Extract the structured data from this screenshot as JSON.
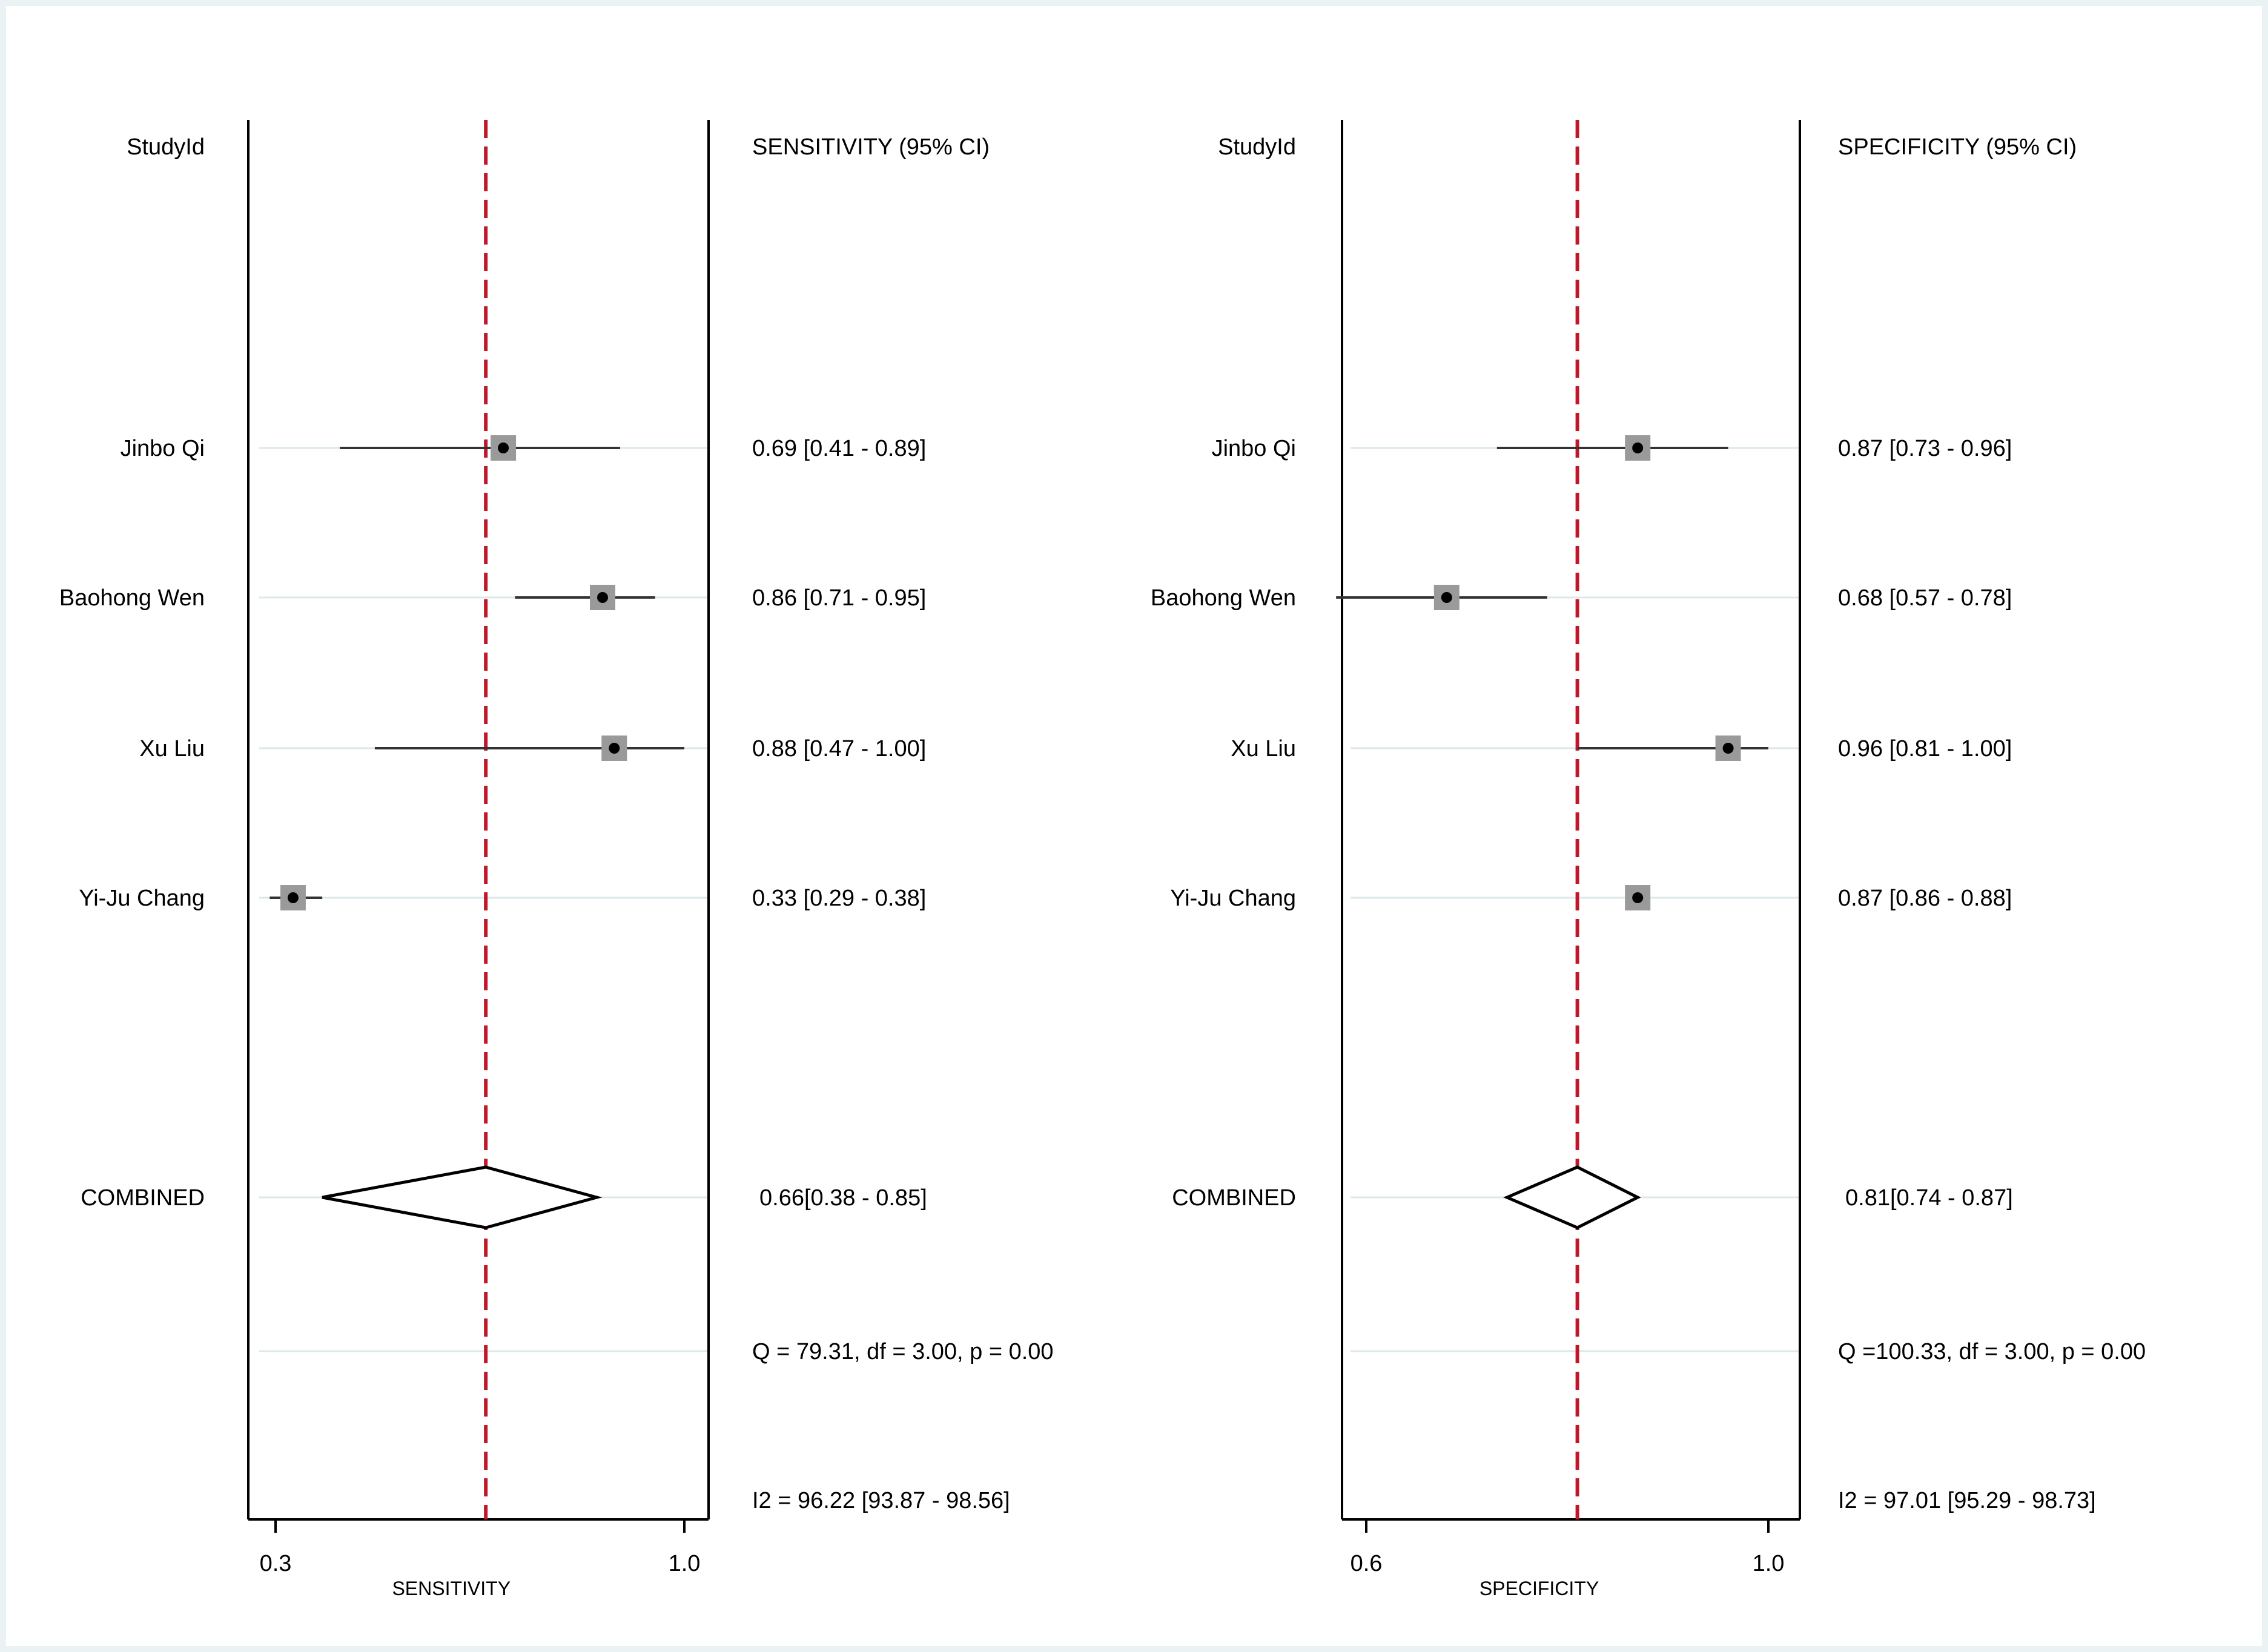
{
  "chart_data": [
    {
      "type": "forest",
      "column_header_study": "StudyId",
      "column_header_estimate": "SENSITIVITY (95% CI)",
      "xlabel": "SENSITIVITY",
      "xlim": [
        0.3,
        1.0
      ],
      "xticks": [
        "0.3",
        "1.0"
      ],
      "pooled_estimate": 0.66,
      "studies": [
        {
          "name": "Jinbo Qi",
          "estimate": 0.69,
          "lower": 0.41,
          "upper": 0.89,
          "label": "0.69 [0.41 - 0.89]"
        },
        {
          "name": "Baohong Wen",
          "estimate": 0.86,
          "lower": 0.71,
          "upper": 0.95,
          "label": "0.86 [0.71 - 0.95]"
        },
        {
          "name": "Xu Liu",
          "estimate": 0.88,
          "lower": 0.47,
          "upper": 1.0,
          "label": "0.88 [0.47 - 1.00]"
        },
        {
          "name": "Yi-Ju Chang",
          "estimate": 0.33,
          "lower": 0.29,
          "upper": 0.38,
          "label": "0.33 [0.29 - 0.38]"
        }
      ],
      "combined": {
        "name": "COMBINED",
        "estimate": 0.66,
        "lower": 0.38,
        "upper": 0.85,
        "label": "0.66[0.38 - 0.85]"
      },
      "heterogeneity_q": "Q = 79.31, df = 3.00, p =  0.00",
      "heterogeneity_i2": "I2 = 96.22 [93.87 - 98.56]"
    },
    {
      "type": "forest",
      "column_header_study": "StudyId",
      "column_header_estimate": "SPECIFICITY (95% CI)",
      "xlabel": "SPECIFICITY",
      "xlim": [
        0.6,
        1.0
      ],
      "xticks": [
        "0.6",
        "1.0"
      ],
      "pooled_estimate": 0.81,
      "studies": [
        {
          "name": "Jinbo Qi",
          "estimate": 0.87,
          "lower": 0.73,
          "upper": 0.96,
          "label": "0.87 [0.73 - 0.96]"
        },
        {
          "name": "Baohong Wen",
          "estimate": 0.68,
          "lower": 0.57,
          "upper": 0.78,
          "label": "0.68 [0.57 - 0.78]"
        },
        {
          "name": "Xu Liu",
          "estimate": 0.96,
          "lower": 0.81,
          "upper": 1.0,
          "label": "0.96 [0.81 - 1.00]"
        },
        {
          "name": "Yi-Ju Chang",
          "estimate": 0.87,
          "lower": 0.86,
          "upper": 0.88,
          "label": "0.87 [0.86 - 0.88]"
        }
      ],
      "combined": {
        "name": "COMBINED",
        "estimate": 0.81,
        "lower": 0.74,
        "upper": 0.87,
        "label": "0.81[0.74 - 0.87]"
      },
      "heterogeneity_q": "Q =100.33, df = 3.00, p =  0.00",
      "heterogeneity_i2": "I2 = 97.01 [95.29 - 98.73]"
    }
  ],
  "colors": {
    "reference_line": "#c0182a",
    "marker_box": "#9a9a9a",
    "row_line": "#dde8ea",
    "background_frame": "#eaf2f3"
  }
}
